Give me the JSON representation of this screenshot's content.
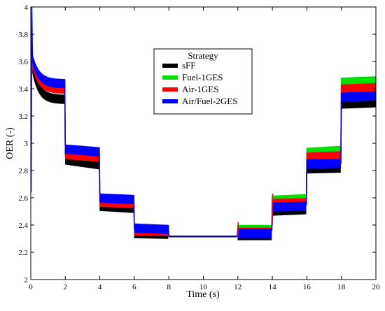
{
  "chart_data": {
    "type": "line",
    "title": "",
    "xlabel": "Time (s)",
    "ylabel": "OER (-)",
    "xlim": [
      0,
      20
    ],
    "ylim": [
      2,
      4
    ],
    "xticks": [
      0,
      2,
      4,
      6,
      8,
      10,
      12,
      14,
      16,
      18,
      20
    ],
    "yticks": [
      2,
      2.2,
      2.4,
      2.6,
      2.8,
      3,
      3.2,
      3.4,
      3.6,
      3.8,
      4
    ],
    "grid": false,
    "legend": {
      "title": "Strategy",
      "placement": "top-center"
    },
    "series": [
      {
        "name": "sFF",
        "color": "#000000",
        "segments": [
          {
            "t0": 0.1,
            "t1": 1.95,
            "start": 3.58,
            "end": 3.355
          },
          {
            "t0": 2.0,
            "t1": 3.95,
            "start": 2.91,
            "end": 2.875
          },
          {
            "t0": 4.0,
            "t1": 5.95,
            "start": 2.57,
            "end": 2.555
          },
          {
            "t0": 6.0,
            "t1": 7.95,
            "start": 2.37,
            "end": 2.365
          },
          {
            "t0": 8.0,
            "t1": 11.95,
            "start": 2.315,
            "end": 2.315
          },
          {
            "t0": 12.0,
            "t1": 13.95,
            "start": 2.355,
            "end": 2.355
          },
          {
            "t0": 14.0,
            "t1": 15.95,
            "start": 2.535,
            "end": 2.545
          },
          {
            "t0": 16.0,
            "t1": 17.95,
            "start": 2.845,
            "end": 2.85
          },
          {
            "t0": 18.0,
            "t1": 20.0,
            "start": 3.32,
            "end": 3.33
          }
        ]
      },
      {
        "name": "Fuel-1GES",
        "color": "#00e000",
        "segments": [
          {
            "t0": 0.1,
            "t1": 1.95,
            "start": 3.63,
            "end": 3.44
          },
          {
            "t0": 2.0,
            "t1": 3.95,
            "start": 2.96,
            "end": 2.94
          },
          {
            "t0": 4.0,
            "t1": 5.95,
            "start": 2.61,
            "end": 2.6
          },
          {
            "t0": 6.0,
            "t1": 7.95,
            "start": 2.395,
            "end": 2.39
          },
          {
            "t0": 8.0,
            "t1": 11.95,
            "start": 2.32,
            "end": 2.32
          },
          {
            "t0": 12.0,
            "t1": 13.95,
            "start": 2.4,
            "end": 2.4
          },
          {
            "t0": 14.0,
            "t1": 15.95,
            "start": 2.615,
            "end": 2.625
          },
          {
            "t0": 16.0,
            "t1": 17.95,
            "start": 2.965,
            "end": 2.98
          },
          {
            "t0": 18.0,
            "t1": 20.0,
            "start": 3.48,
            "end": 3.49
          }
        ]
      },
      {
        "name": "Air-1GES",
        "color": "#ff0000",
        "segments": [
          {
            "t0": 0.1,
            "t1": 1.95,
            "start": 3.62,
            "end": 3.43
          },
          {
            "t0": 2.0,
            "t1": 3.95,
            "start": 2.95,
            "end": 2.93
          },
          {
            "t0": 4.0,
            "t1": 5.95,
            "start": 2.6,
            "end": 2.59
          },
          {
            "t0": 6.0,
            "t1": 7.95,
            "start": 2.39,
            "end": 2.385
          },
          {
            "t0": 8.0,
            "t1": 11.95,
            "start": 2.32,
            "end": 2.32
          },
          {
            "t0": 12.0,
            "t1": 13.95,
            "start": 2.38,
            "end": 2.38
          },
          {
            "t0": 14.0,
            "t1": 15.95,
            "start": 2.59,
            "end": 2.595
          },
          {
            "t0": 16.0,
            "t1": 17.95,
            "start": 2.93,
            "end": 2.94
          },
          {
            "t0": 18.0,
            "t1": 20.0,
            "start": 3.43,
            "end": 3.44
          }
        ]
      },
      {
        "name": "Air/Fuel-2GES",
        "color": "#0000ff",
        "segments": [
          {
            "t0": 0.1,
            "t1": 1.95,
            "start": 3.65,
            "end": 3.47
          },
          {
            "t0": 2.0,
            "t1": 3.95,
            "start": 2.99,
            "end": 2.97
          },
          {
            "t0": 4.0,
            "t1": 5.95,
            "start": 2.63,
            "end": 2.62
          },
          {
            "t0": 6.0,
            "t1": 7.95,
            "start": 2.41,
            "end": 2.4
          },
          {
            "t0": 8.0,
            "t1": 11.95,
            "start": 2.32,
            "end": 2.32
          },
          {
            "t0": 12.0,
            "t1": 13.95,
            "start": 2.37,
            "end": 2.37
          },
          {
            "t0": 14.0,
            "t1": 15.95,
            "start": 2.565,
            "end": 2.57
          },
          {
            "t0": 16.0,
            "t1": 17.95,
            "start": 2.88,
            "end": 2.885
          },
          {
            "t0": 18.0,
            "t1": 20.0,
            "start": 3.37,
            "end": 3.38
          }
        ]
      }
    ]
  }
}
